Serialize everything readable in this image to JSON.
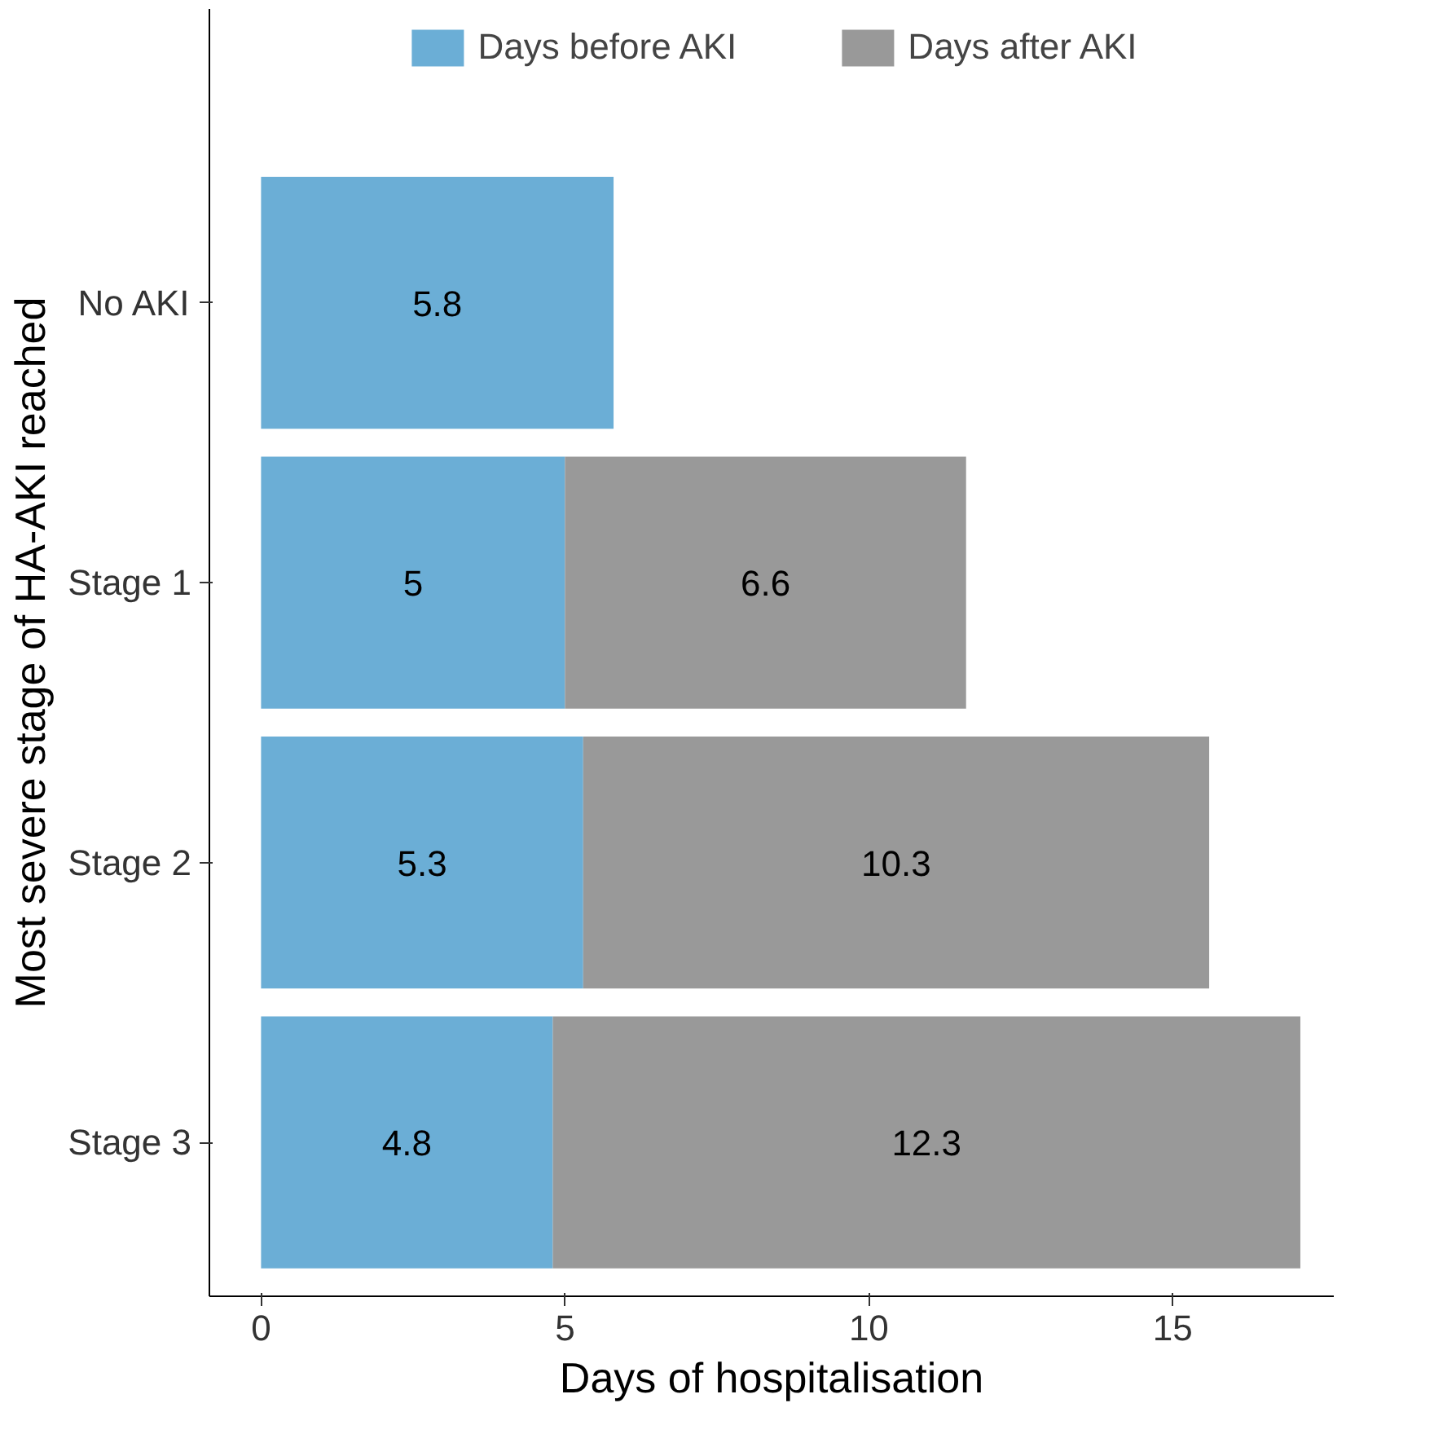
{
  "chart_data": {
    "type": "bar",
    "orientation": "horizontal",
    "stacked": true,
    "xlabel": "Days of hospitalisation",
    "ylabel": "Most severe stage of HA-AKI reached",
    "categories": [
      "No AKI",
      "Stage 1",
      "Stage 2",
      "Stage 3"
    ],
    "series": [
      {
        "name": "Days before AKI",
        "color": "#6baed6",
        "values": [
          5.8,
          5,
          5.3,
          4.8
        ]
      },
      {
        "name": "Days after AKI",
        "color": "#999999",
        "values": [
          null,
          6.6,
          10.3,
          12.3
        ]
      }
    ],
    "xlim": [
      -0.85,
      17.65
    ],
    "xticks": [
      0,
      5,
      10,
      15
    ],
    "data_labels": true,
    "legend": "top",
    "grid": false
  }
}
